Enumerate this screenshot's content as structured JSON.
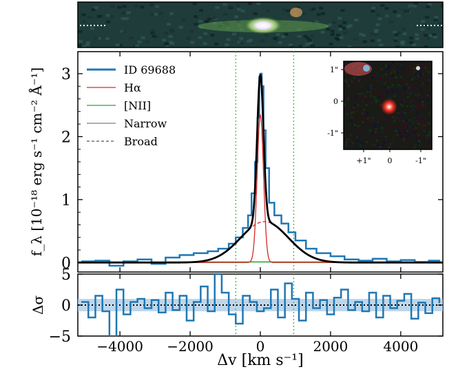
{
  "chart_data": [
    {
      "panel": "2d-spectrum-strip",
      "type": "heatmap",
      "description_colors": {
        "background": "#1f3c3a",
        "emission": "#7fc05a",
        "core": "#ffffff"
      }
    },
    {
      "panel": "main",
      "type": "line",
      "xlabel": "Δv [km s⁻¹]",
      "ylabel": "f_λ [10⁻¹⁸ erg s⁻¹ cm⁻² Å⁻¹]",
      "xlim": [
        -5200,
        5200
      ],
      "ylim": [
        -0.15,
        3.35
      ],
      "yticks": [
        "0",
        "1",
        "2",
        "3"
      ],
      "legend_position": "top-left",
      "vlines_x": [
        -700,
        950
      ],
      "series": [
        {
          "name": "ID 69688",
          "kind": "data-step",
          "color": "#1f77b4",
          "x": [
            -5100,
            -4700,
            -4300,
            -3900,
            -3500,
            -3100,
            -2700,
            -2300,
            -1900,
            -1500,
            -1200,
            -900,
            -700,
            -500,
            -350,
            -250,
            -150,
            -80,
            -30,
            0,
            40,
            90,
            150,
            250,
            400,
            600,
            800,
            1000,
            1300,
            1600,
            2000,
            2400,
            2800,
            3200,
            3600,
            4000,
            4400,
            4800,
            5100
          ],
          "y": [
            0.02,
            0.03,
            -0.05,
            0.02,
            0.05,
            -0.02,
            0.08,
            0.12,
            0.15,
            0.18,
            0.22,
            0.3,
            0.4,
            0.55,
            0.75,
            1.1,
            1.6,
            2.3,
            2.95,
            3.0,
            2.8,
            2.1,
            1.5,
            0.95,
            0.75,
            0.62,
            0.48,
            0.35,
            0.22,
            0.15,
            0.1,
            0.05,
            0.03,
            0.06,
            0.02,
            0.04,
            0.01,
            0.03,
            0.02
          ]
        },
        {
          "name": "Hα",
          "kind": "model",
          "color": "#d62728"
        },
        {
          "name": "[NII]",
          "kind": "model",
          "color": "#2ca02c"
        },
        {
          "name": "Narrow",
          "kind": "model",
          "color": "#7f7f7f"
        },
        {
          "name": "Broad",
          "kind": "model",
          "color": "#555555"
        }
      ],
      "components": {
        "narrow_halpha": {
          "amp": 2.35,
          "center": 0,
          "sigma": 90
        },
        "broad_halpha": {
          "amp": 0.65,
          "center": 120,
          "sigma": 680
        }
      }
    },
    {
      "panel": "residuals",
      "type": "line",
      "ylabel": "Δσ",
      "xlim": [
        -5200,
        5200
      ],
      "ylim": [
        -5,
        5
      ],
      "yticks": [
        "−5",
        "0",
        "5"
      ],
      "xticks": [
        "−4000",
        "−2000",
        "0",
        "2000",
        "4000"
      ],
      "band": [
        -1,
        1
      ],
      "series": [
        {
          "name": "residual",
          "color": "#1f77b4",
          "x": [
            -5100,
            -4900,
            -4700,
            -4500,
            -4300,
            -4100,
            -3900,
            -3700,
            -3500,
            -3300,
            -3100,
            -2900,
            -2700,
            -2500,
            -2300,
            -2100,
            -1900,
            -1700,
            -1500,
            -1300,
            -1100,
            -900,
            -700,
            -500,
            -300,
            -100,
            100,
            300,
            500,
            700,
            900,
            1100,
            1300,
            1500,
            1700,
            1900,
            2100,
            2300,
            2500,
            2700,
            2900,
            3100,
            3300,
            3500,
            3700,
            3900,
            4100,
            4300,
            4500,
            4700,
            4900,
            5100
          ],
          "y": [
            0.5,
            -2,
            1.5,
            -1,
            -5,
            2.5,
            -1.5,
            0.5,
            1,
            -0.5,
            0.8,
            -1.2,
            2.0,
            -0.8,
            1.5,
            -2.5,
            0.5,
            3,
            -1,
            5,
            2,
            -1.5,
            -3,
            1.5,
            0.5,
            -1,
            -0.5,
            2.5,
            -2,
            3.5,
            1,
            -2.5,
            2,
            -0.5,
            0.8,
            -1.5,
            1.2,
            2.5,
            -0.8,
            0.5,
            -1,
            2,
            -2,
            1.5,
            -0.5,
            0.7,
            1.8,
            -2.2,
            0.4,
            -1.3,
            1.1,
            0.3
          ]
        }
      ]
    },
    {
      "panel": "inset-image",
      "type": "heatmap",
      "xticks": [
        "+1\"",
        "0",
        "-1\""
      ],
      "yticks": [
        "1\"",
        "0",
        "-1\""
      ]
    }
  ]
}
